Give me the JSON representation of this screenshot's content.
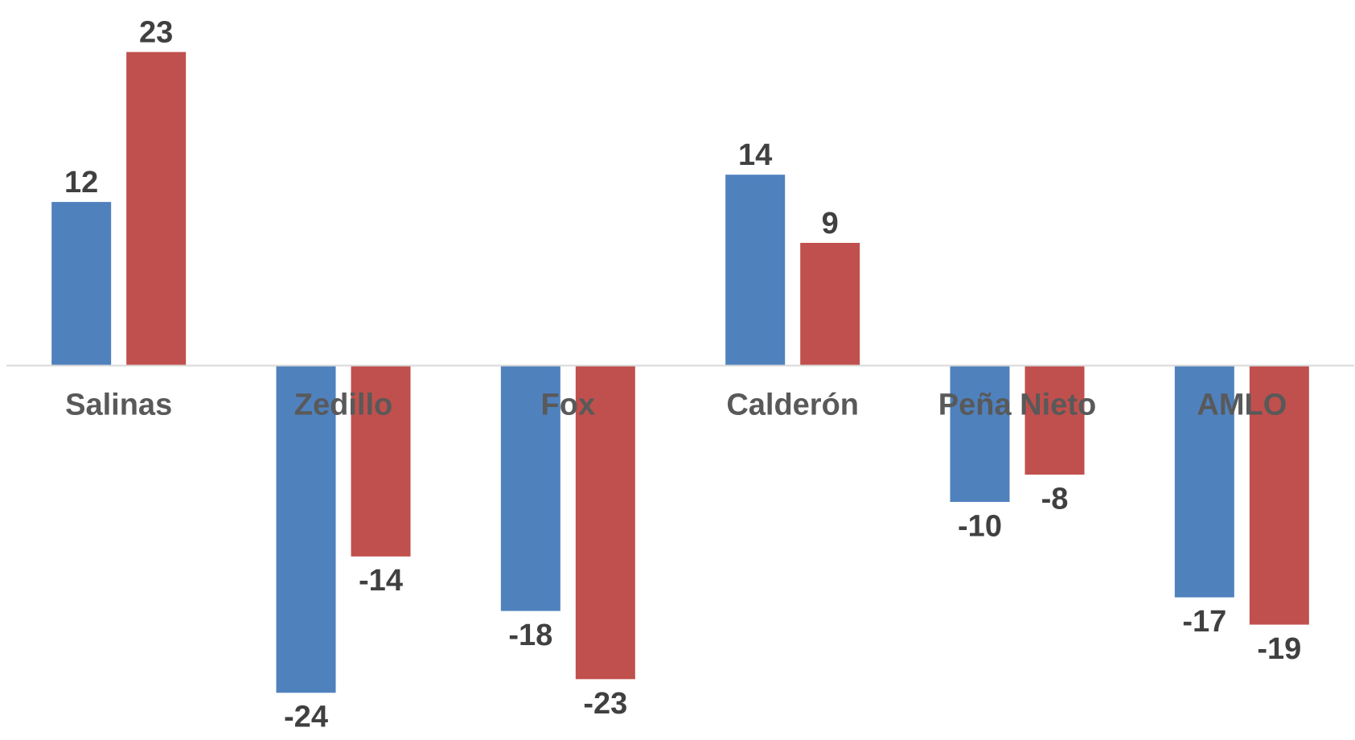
{
  "chart_data": {
    "type": "bar",
    "categories": [
      "Salinas",
      "Zedillo",
      "Fox",
      "Calderón",
      "Peña Nieto",
      "AMLO"
    ],
    "series": [
      {
        "values": [
          12,
          -24,
          -18,
          14,
          -10,
          -17
        ],
        "color": "#4F81BD"
      },
      {
        "values": [
          23,
          -14,
          -23,
          9,
          -8,
          -19
        ],
        "color": "#C0504D"
      }
    ],
    "ylim": [
      -27,
      27
    ],
    "grid": false,
    "legend": "none",
    "title": "",
    "xlabel": "",
    "ylabel": "",
    "axis_color": "#D9D9D9"
  }
}
